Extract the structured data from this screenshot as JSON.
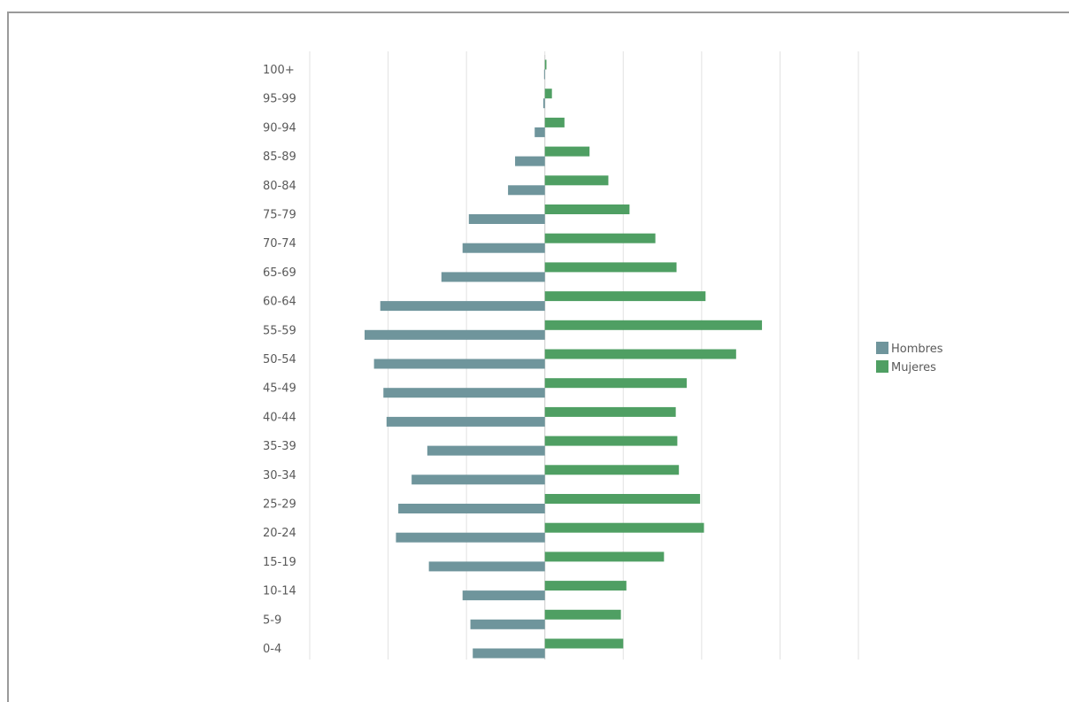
{
  "chart_data": {
    "type": "bar",
    "orientation": "horizontal",
    "chart_kind": "population-pyramid",
    "categories": [
      "0-4",
      "5-9",
      "10-14",
      "15-19",
      "20-24",
      "25-29",
      "30-34",
      "35-39",
      "40-44",
      "45-49",
      "50-54",
      "55-59",
      "60-64",
      "65-69",
      "70-74",
      "75-79",
      "80-84",
      "85-89",
      "90-94",
      "95-99",
      "100+"
    ],
    "series": [
      {
        "name": "Hombres",
        "color": "#6f959c",
        "values": [
          -9.2,
          -9.5,
          -10.5,
          -14.8,
          -19.0,
          -18.7,
          -17.0,
          -15.0,
          -20.2,
          -20.6,
          -21.8,
          -23.0,
          -21.0,
          -13.2,
          -10.5,
          -9.7,
          -4.7,
          -3.8,
          -1.3,
          -0.2,
          -0.1
        ]
      },
      {
        "name": "Mujeres",
        "color": "#4f9f63",
        "values": [
          10.0,
          9.7,
          10.4,
          15.2,
          20.3,
          19.8,
          17.1,
          16.9,
          16.7,
          18.1,
          24.4,
          27.7,
          20.5,
          16.8,
          14.1,
          10.8,
          8.1,
          5.7,
          2.5,
          0.9,
          0.2
        ]
      }
    ],
    "xlim": [
      -30,
      40
    ],
    "grid": true,
    "legend_position": "right"
  }
}
